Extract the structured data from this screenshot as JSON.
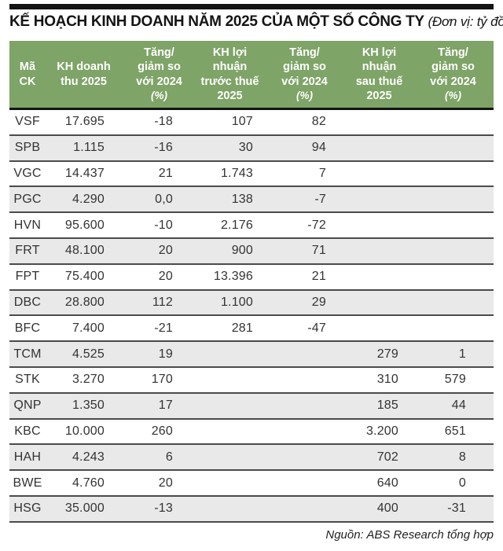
{
  "title": {
    "main": "KẾ HOẠCH KINH DOANH NĂM 2025 CỦA MỘT SỐ CÔNG TY",
    "unit": "(Đơn vị: tỷ đồng)"
  },
  "header": {
    "cells": [
      {
        "main": "Mã\nCK",
        "suffix": ""
      },
      {
        "main": "KH doanh\nthu 2025",
        "suffix": ""
      },
      {
        "main": "Tăng/\ngiảm so\nvới 2024",
        "suffix": "(%)"
      },
      {
        "main": "KH lợi\nnhuận\ntrước thuế\n2025",
        "suffix": ""
      },
      {
        "main": "Tăng/\ngiảm so\nvới 2024",
        "suffix": "(%)"
      },
      {
        "main": "KH lợi\nnhuận\nsau thuế\n2025",
        "suffix": ""
      },
      {
        "main": "Tăng/\ngiảm so\nvới 2024",
        "suffix": "(%)"
      }
    ]
  },
  "footer": {
    "source": "Nguồn: ABS Research tổng hợp"
  },
  "colors": {
    "header_green": "#7ea467",
    "row_alt_gray": "#e9e9e9",
    "separator": "#4b4b4b",
    "rule_black": "#141414"
  },
  "chart_data": {
    "type": "table",
    "title": "KẾ HOẠCH KINH DOANH NĂM 2025 CỦA MỘT SỐ CÔNG TY",
    "unit_note": "(Đơn vị: tỷ đồng)",
    "columns": [
      "Mã CK",
      "KH doanh thu 2025",
      "Tăng/giảm so với 2024 (%)",
      "KH lợi nhuận trước thuế 2025",
      "Tăng/giảm so với 2024 (%)",
      "KH lợi nhuận sau thuế 2025",
      "Tăng/giảm so với 2024 (%)"
    ],
    "rows": [
      [
        "VSF",
        "17.695",
        "-18",
        "107",
        "82",
        "",
        ""
      ],
      [
        "SPB",
        "1.115",
        "-16",
        "30",
        "94",
        "",
        ""
      ],
      [
        "VGC",
        "14.437",
        "21",
        "1.743",
        "7",
        "",
        ""
      ],
      [
        "PGC",
        "4.290",
        "0,0",
        "138",
        "-7",
        "",
        ""
      ],
      [
        "HVN",
        "95.600",
        "-10",
        "2.176",
        "-72",
        "",
        ""
      ],
      [
        "FRT",
        "48.100",
        "20",
        "900",
        "71",
        "",
        ""
      ],
      [
        "FPT",
        "75.400",
        "20",
        "13.396",
        "21",
        "",
        ""
      ],
      [
        "DBC",
        "28.800",
        "112",
        "1.100",
        "29",
        "",
        ""
      ],
      [
        "BFC",
        "7.400",
        "-21",
        "281",
        "-47",
        "",
        ""
      ],
      [
        "TCM",
        "4.525",
        "19",
        "",
        "",
        "279",
        "1"
      ],
      [
        "STK",
        "3.270",
        "170",
        "",
        "",
        "310",
        "579"
      ],
      [
        "QNP",
        "1.350",
        "17",
        "",
        "",
        "185",
        "44"
      ],
      [
        "KBC",
        "10.000",
        "260",
        "",
        "",
        "3.200",
        "651"
      ],
      [
        "HAH",
        "4.243",
        "6",
        "",
        "",
        "702",
        "8"
      ],
      [
        "BWE",
        "4.760",
        "20",
        "",
        "",
        "640",
        "0"
      ],
      [
        "HSG",
        "35.000",
        "-13",
        "",
        "",
        "400",
        "-31"
      ]
    ],
    "source": "Nguồn: ABS Research tổng hợp"
  }
}
